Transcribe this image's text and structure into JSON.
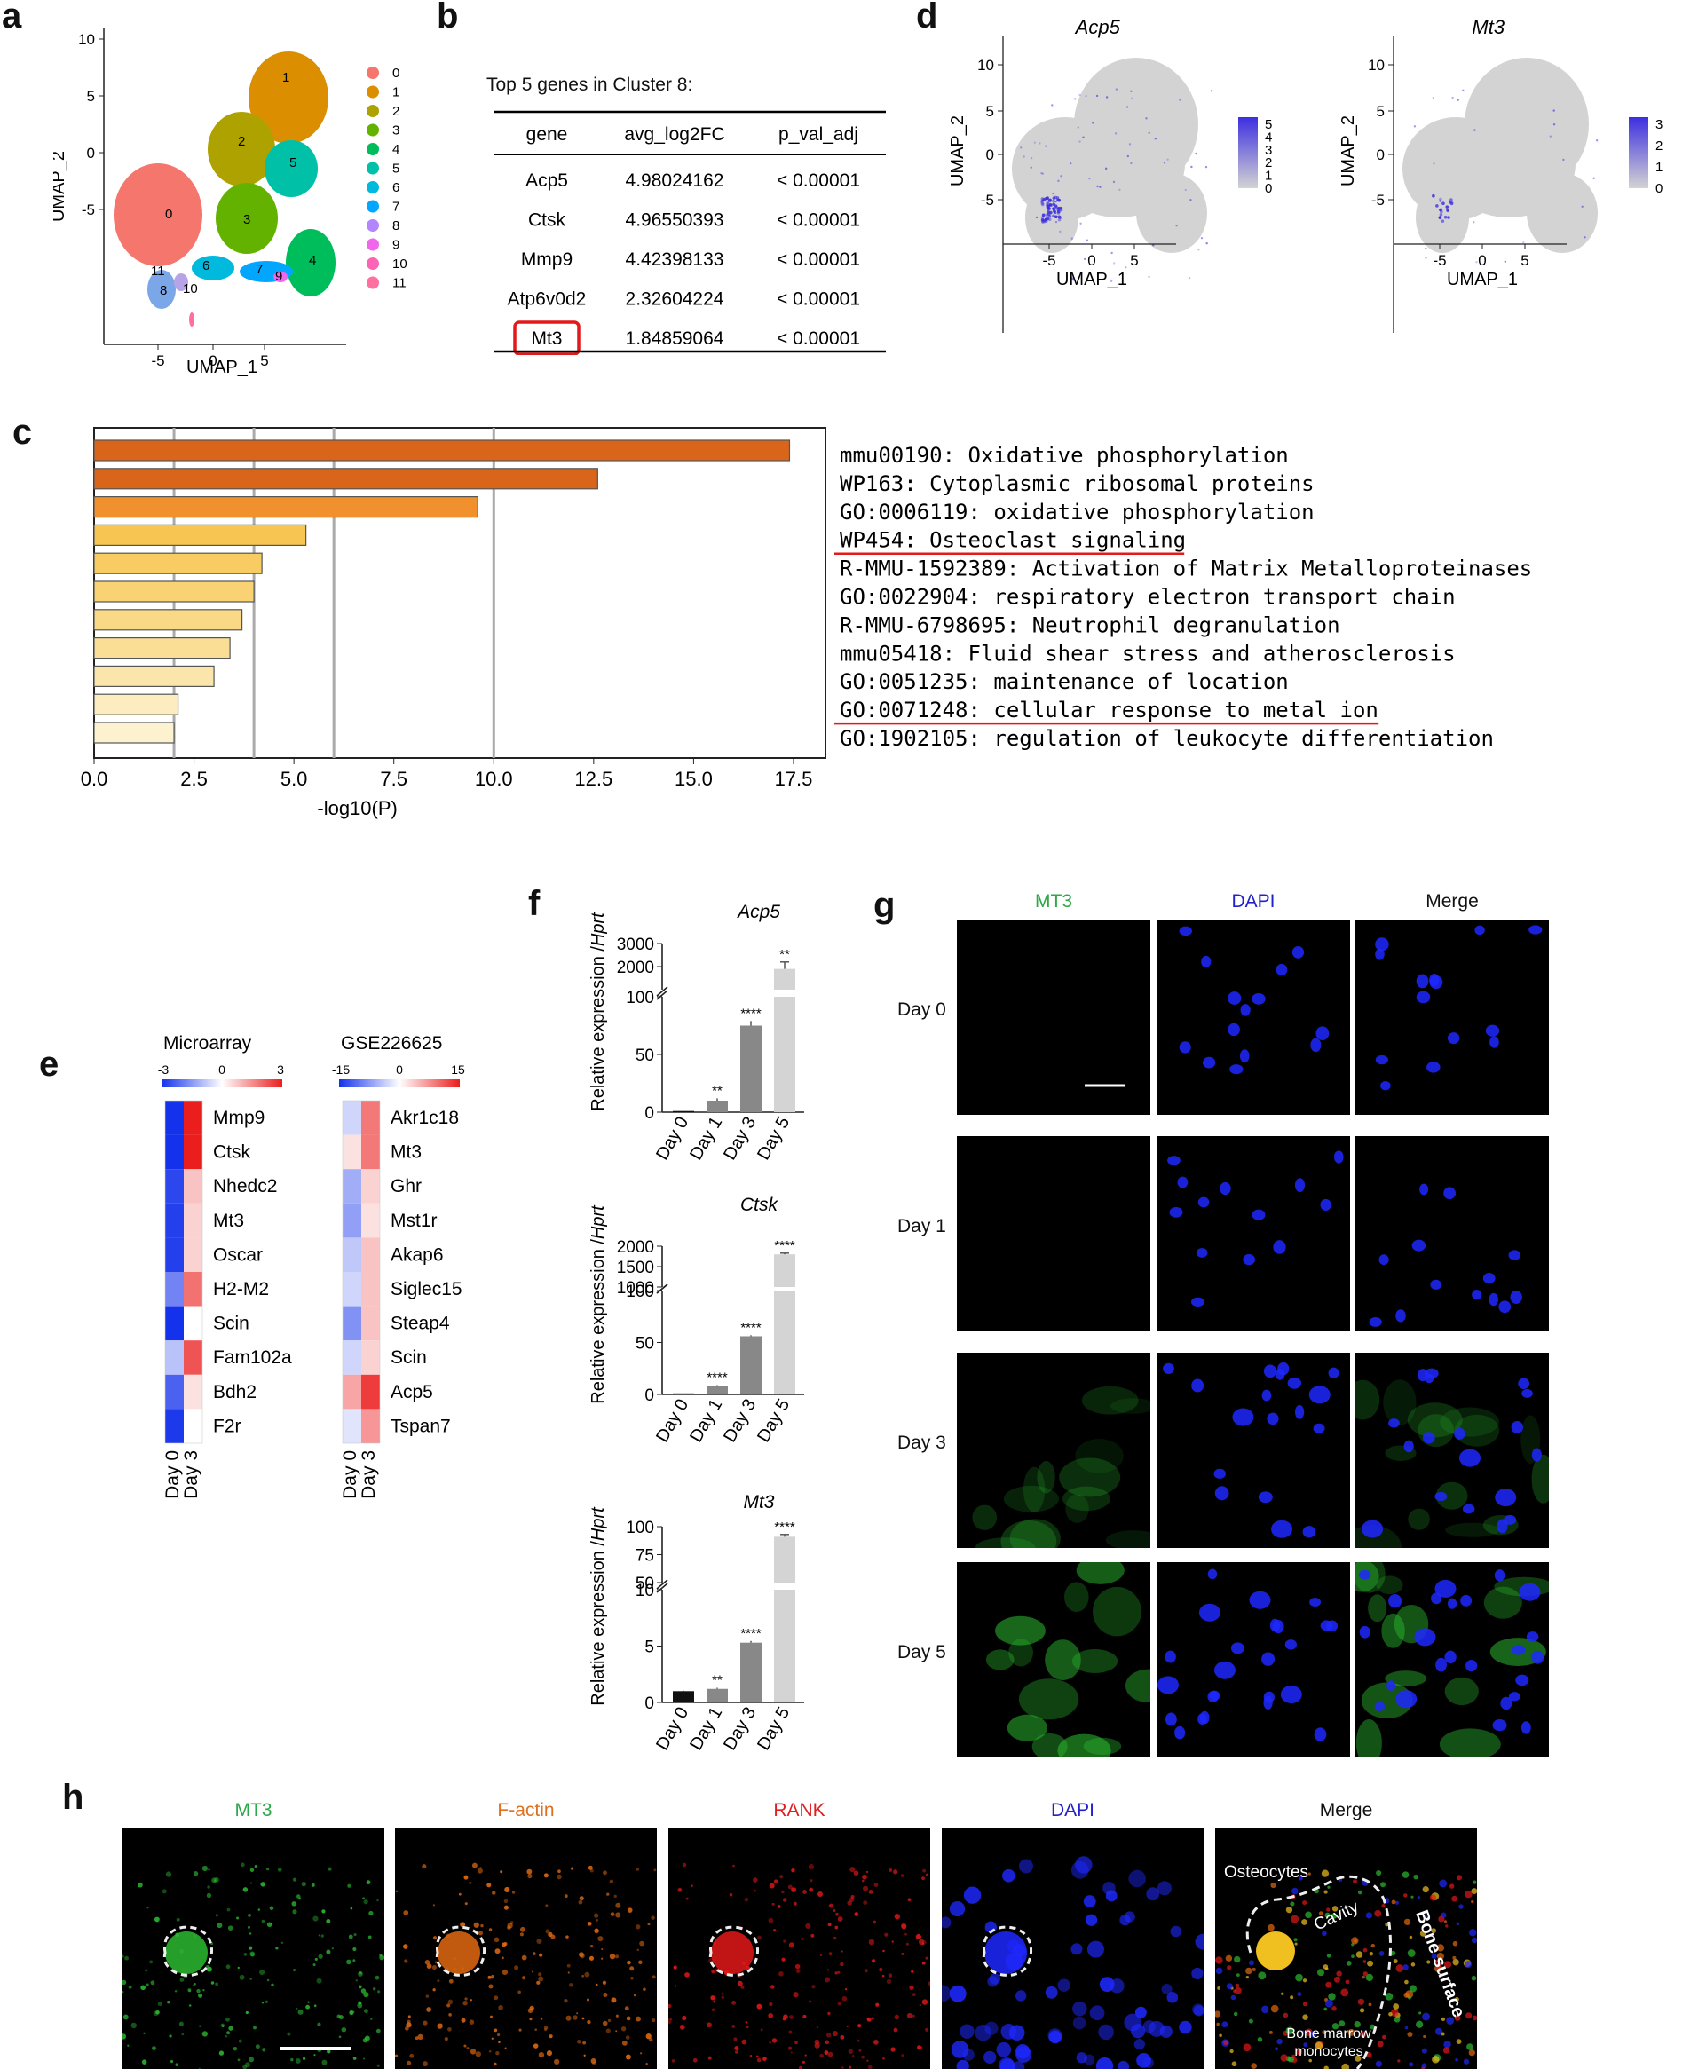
{
  "panels": {
    "a": "a",
    "b": "b",
    "c": "c",
    "d": "d",
    "e": "e",
    "f": "f",
    "g": "g",
    "h": "h"
  },
  "panel_a": {
    "xlabel": "UMAP_1",
    "ylabel": "UMAP_2",
    "xticks": [
      "-5",
      "0",
      "5"
    ],
    "yticks": [
      "10",
      "5",
      "0",
      "-5"
    ],
    "legend": [
      "0",
      "1",
      "2",
      "3",
      "4",
      "5",
      "6",
      "7",
      "8",
      "9",
      "10",
      "11"
    ],
    "colors": [
      "#f4766d",
      "#db8e00",
      "#aea200",
      "#64b200",
      "#00bd5c",
      "#00c1a7",
      "#00bade",
      "#00a6ff",
      "#b385ff",
      "#ef67eb",
      "#ff63b6",
      "#ff6fa0"
    ],
    "cluster_labels": [
      "0",
      "1",
      "2",
      "3",
      "4",
      "5",
      "6",
      "7",
      "8",
      "9",
      "10",
      "11"
    ]
  },
  "panel_b": {
    "title": "Top 5  genes in Cluster 8:",
    "headers": [
      "gene",
      "avg_log2FC",
      "p_val_adj"
    ],
    "rows": [
      [
        "Acp5",
        "4.98024162",
        "< 0.00001"
      ],
      [
        "Ctsk",
        "4.96550393",
        "< 0.00001"
      ],
      [
        "Mmp9",
        "4.42398133",
        "< 0.00001"
      ],
      [
        "Atp6v0d2",
        "2.32604224",
        "< 0.00001"
      ],
      [
        "Mt3",
        "1.84859064",
        "< 0.00001"
      ]
    ],
    "highlight_color": "#e31a1c"
  },
  "panel_c": {
    "xlabel": "-log10(P)",
    "xticks": [
      "0.0",
      "2.5",
      "5.0",
      "7.5",
      "10.0",
      "12.5",
      "15.0",
      "17.5"
    ],
    "terms": [
      "mmu00190: Oxidative phosphorylation",
      "WP163: Cytoplasmic ribosomal proteins",
      "GO:0006119: oxidative phosphorylation",
      "WP454: Osteoclast signaling",
      "R-MMU-1592389: Activation of Matrix Metalloproteinases",
      "GO:0022904: respiratory electron transport chain",
      "R-MMU-6798695: Neutrophil degranulation",
      "mmu05418: Fluid shear stress and atherosclerosis",
      "GO:0051235: maintenance of location",
      "GO:0071248: cellular response to metal ion",
      "GO:1902105: regulation of leukocyte differentiation"
    ],
    "underline_color": "#e31a1c"
  },
  "chart_data": [
    {
      "type": "bar",
      "orientation": "horizontal",
      "categories": [
        "mmu00190: Oxidative phosphorylation",
        "WP163: Cytoplasmic ribosomal proteins",
        "GO:0006119: oxidative phosphorylation",
        "WP454: Osteoclast signaling",
        "R-MMU-1592389: Activation of Matrix Metalloproteinases",
        "GO:0022904: respiratory electron transport chain",
        "R-MMU-6798695: Neutrophil degranulation",
        "mmu05418: Fluid shear stress and atherosclerosis",
        "GO:0051235: maintenance of location",
        "GO:0071248: cellular response to metal ion",
        "GO:1902105: regulation of leukocyte differentiation"
      ],
      "values": [
        17.4,
        12.6,
        9.6,
        5.3,
        4.2,
        4.0,
        3.7,
        3.4,
        3.0,
        2.1,
        2.0
      ],
      "xlabel": "-log10(P)",
      "xlim": [
        0,
        18.3
      ],
      "gridlines_at": [
        2,
        4,
        6,
        10
      ],
      "colors": [
        "#d9651a",
        "#d9651a",
        "#f0912e",
        "#f7c552",
        "#f8cc62",
        "#f8d273",
        "#f9d985",
        "#fade96",
        "#fbe5aa",
        "#fcecbf",
        "#fdf2cf"
      ]
    },
    {
      "type": "bar",
      "title": "Acp5",
      "ylabel": "Relative expression /Hprt",
      "categories": [
        "Day 0",
        "Day 1",
        "Day 3",
        "Day 5"
      ],
      "values": [
        1,
        10,
        75,
        1900
      ],
      "errors": [
        0,
        2,
        4,
        300
      ],
      "significance": [
        "",
        "**",
        "****",
        "**"
      ],
      "y_axis_broken": true,
      "lower_range": [
        0,
        100
      ],
      "upper_range": [
        1000,
        3000
      ],
      "lower_ticks": [
        "0",
        "50",
        "100"
      ],
      "upper_ticks": [
        "2000",
        "3000"
      ],
      "bar_colors": [
        "#111111",
        "#888888",
        "#888888",
        "#d4d4d4"
      ]
    },
    {
      "type": "bar",
      "title": "Ctsk",
      "ylabel": "Relative expression /Hprt",
      "categories": [
        "Day 0",
        "Day 1",
        "Day 3",
        "Day 5"
      ],
      "values": [
        1,
        8,
        56,
        1800
      ],
      "errors": [
        0,
        1,
        1,
        30
      ],
      "significance": [
        "",
        "****",
        "****",
        "****"
      ],
      "y_axis_broken": true,
      "lower_range": [
        0,
        100
      ],
      "upper_range": [
        1000,
        2000
      ],
      "lower_ticks": [
        "0",
        "50",
        "100"
      ],
      "upper_ticks": [
        "1000",
        "1500",
        "2000"
      ],
      "bar_colors": [
        "#111111",
        "#888888",
        "#888888",
        "#d4d4d4"
      ]
    },
    {
      "type": "bar",
      "title": "Mt3",
      "ylabel": "Relative expression /Hprt",
      "categories": [
        "Day 0",
        "Day 1",
        "Day 3",
        "Day 5"
      ],
      "values": [
        1,
        1.2,
        5.3,
        91
      ],
      "errors": [
        0.05,
        0.1,
        0.15,
        2
      ],
      "significance": [
        "",
        "**",
        "****",
        "****"
      ],
      "y_axis_broken": true,
      "lower_range": [
        0,
        10
      ],
      "upper_range": [
        50,
        100
      ],
      "lower_ticks": [
        "0",
        "5",
        "10"
      ],
      "upper_ticks": [
        "50",
        "75",
        "100"
      ],
      "bar_colors": [
        "#111111",
        "#888888",
        "#888888",
        "#d4d4d4"
      ]
    },
    {
      "type": "heatmap",
      "title": "Microarray",
      "scale_ticks": [
        "-3",
        "0",
        "3"
      ],
      "range": [
        -3,
        3
      ],
      "columns": [
        "Day 0",
        "Day 3"
      ],
      "rows": [
        "Mmp9",
        "Ctsk",
        "Nhedc2",
        "Mt3",
        "Oscar",
        "H2-M2",
        "Scin",
        "Fam102a",
        "Bdh2",
        "F2r"
      ],
      "values": [
        [
          -3,
          3
        ],
        [
          -3,
          3
        ],
        [
          -2.7,
          0.8
        ],
        [
          -2.8,
          0.6
        ],
        [
          -2.8,
          0.6
        ],
        [
          -1.8,
          1.9
        ],
        [
          -3,
          0
        ],
        [
          -0.9,
          2.3
        ],
        [
          -2.3,
          0.4
        ],
        [
          -2.9,
          0
        ]
      ]
    },
    {
      "type": "heatmap",
      "title": "GSE226625",
      "scale_ticks": [
        "-15",
        "0",
        "15"
      ],
      "range": [
        -15,
        15
      ],
      "columns": [
        "Day 0",
        "Day 3"
      ],
      "rows": [
        "Akr1c18",
        "Mt3",
        "Ghr",
        "Mst1r",
        "Akap6",
        "Siglec15",
        "Steap4",
        "Scin",
        "Acp5",
        "Tspan7"
      ],
      "values": [
        [
          -3,
          9
        ],
        [
          2,
          9
        ],
        [
          -6,
          3
        ],
        [
          -7,
          2
        ],
        [
          -4,
          4
        ],
        [
          -3,
          4
        ],
        [
          -8,
          4
        ],
        [
          -3,
          3
        ],
        [
          6,
          13
        ],
        [
          -2,
          7
        ]
      ]
    }
  ],
  "panel_d": {
    "plots": [
      {
        "title": "Acp5",
        "scale_ticks": [
          "5",
          "4",
          "3",
          "2",
          "1",
          "0"
        ],
        "yticks": [
          "10",
          "5",
          "0",
          "-5"
        ]
      },
      {
        "title": "Mt3",
        "scale_ticks": [
          "3",
          "2",
          "1",
          "0"
        ],
        "yticks": [
          "10",
          "5",
          "0",
          "-5"
        ]
      }
    ],
    "xticks": [
      "-5",
      "0",
      "5"
    ],
    "xlabel": "UMAP_1",
    "ylabel": "UMAP_2",
    "feature_color": "#3d2fe0"
  },
  "panel_e": {
    "microarray_title": "Microarray",
    "gse_title": "GSE226625"
  },
  "panel_g": {
    "channels": [
      "MT3",
      "DAPI",
      "Merge"
    ],
    "channel_colors": [
      "#2ea84a",
      "#2222cc",
      "#111111"
    ],
    "rows": [
      "Day 0",
      "Day 1",
      "Day 3",
      "Day 5"
    ]
  },
  "panel_h": {
    "channels": [
      "MT3",
      "F-actin",
      "RANK",
      "DAPI",
      "Merge"
    ],
    "channel_colors": [
      "#2ea84a",
      "#e07020",
      "#e02020",
      "#2222cc",
      "#111111"
    ],
    "annotations": [
      "Osteocytes",
      "Cavity",
      "Bone surface",
      "Bone marrow\nmonocytes"
    ]
  }
}
